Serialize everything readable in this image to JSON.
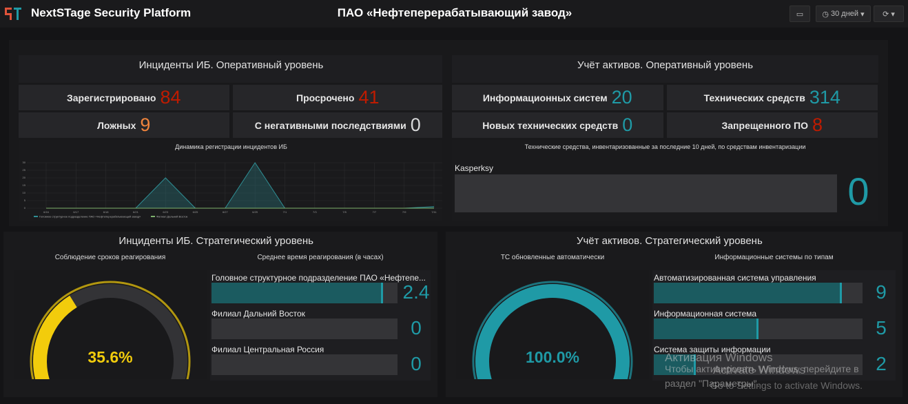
{
  "header": {
    "brand": "NextSTage Security Platform",
    "title": "ПАО «Нефтеперерабатывающий завод»",
    "time_range": "30 дней"
  },
  "panels": [
    {
      "title": "Инциденты ИБ. Оперативный уровень",
      "stats": [
        {
          "label": "Зарегистрировано",
          "value": 84,
          "color": "#bf1b00"
        },
        {
          "label": "Просрочено",
          "value": 41,
          "color": "#bf1b00"
        },
        {
          "label": "Ложных",
          "value": 9,
          "color": "#ef843c"
        },
        {
          "label": "С негативными последствиями",
          "value": 0,
          "color": "#d8d9da"
        }
      ],
      "chart": {
        "type": "line",
        "title": "Динамика регистрации инцидентов ИБ",
        "categories": [
          "6/16",
          "6/17",
          "6/18",
          "6/21",
          "6/23",
          "6/25",
          "6/27",
          "6/29",
          "7/1",
          "7/3",
          "7/5",
          "7/7",
          "7/9",
          "7/11"
        ],
        "series": [
          {
            "name": "Головное структурное подразделение ПАО «Нефтеперерабатывающий завод»",
            "color": "#2f8f95",
            "values": [
              0,
              0,
              0,
              0,
              20,
              0,
              0,
              30,
              0,
              0,
              0,
              0,
              0,
              1
            ]
          },
          {
            "name": "Филиал Дальний Восток",
            "color": "#7eb26d",
            "values": [
              0,
              0,
              0,
              0,
              0,
              0,
              0,
              0,
              0,
              0,
              0,
              0,
              0,
              0
            ]
          }
        ],
        "ylim": [
          0,
          30
        ],
        "yticks": [
          0,
          5,
          10,
          15,
          20,
          25,
          30
        ],
        "grid": true
      }
    },
    {
      "title": "Учёт активов. Оперативный уровень",
      "stats": [
        {
          "label": "Информационных систем",
          "value": 20,
          "color": "#1f9aa6"
        },
        {
          "label": "Технических средств",
          "value": 314,
          "color": "#1f9aa6"
        },
        {
          "label": "Новых технических средств",
          "value": 0,
          "color": "#1f9aa6"
        },
        {
          "label": "Запрещенного ПО",
          "value": 8,
          "color": "#bf1b00"
        }
      ],
      "chart": {
        "type": "bargauge",
        "title": "Технические средства, инвентаризованные за последние 10 дней, по средствам инвентаризации",
        "categories": [
          "Kasperksy"
        ],
        "values": [
          0
        ],
        "xlim": [
          0,
          10
        ],
        "color": "#1f9aa6"
      }
    },
    {
      "title": "Инциденты ИБ. Стратегический уровень",
      "gauge": {
        "title": "Соблюдение сроков реагирования",
        "value": 35.6,
        "value_label": "35.6%",
        "range": [
          0,
          100
        ],
        "color": "#f2cc0c"
      },
      "chart": {
        "type": "bargauge",
        "title": "Среднее время реагирования (в часах)",
        "categories": [
          "Головное структурное подразделение ПАО «Нефтепе...",
          "Филиал Дальний Восток",
          "Филиал Центральная Россия"
        ],
        "values": [
          2.4,
          0,
          0
        ],
        "xlim": [
          0,
          2.6
        ],
        "color": "#1f9aa6"
      }
    },
    {
      "title": "Учёт активов. Стратегический уровень",
      "gauge": {
        "title": "ТС обновленные автоматически",
        "value": 100.0,
        "value_label": "100.0%",
        "range": [
          0,
          100
        ],
        "color": "#1f9aa6"
      },
      "chart": {
        "type": "bargauge",
        "title": "Информационные системы по типам",
        "categories": [
          "Автоматизированная система управления",
          "Информационная система",
          "Система защиты информации"
        ],
        "values": [
          9,
          5,
          2
        ],
        "xlim": [
          0,
          10
        ],
        "color": "#1f9aa6"
      }
    }
  ],
  "watermark": {
    "lines": [
      "Активация Windows",
      "Чтобы активировать Windows, перейдите в",
      "раздел \"Параметры\"."
    ],
    "overlay": [
      "Activate Windows",
      "Go to Settings to activate Windows."
    ]
  }
}
